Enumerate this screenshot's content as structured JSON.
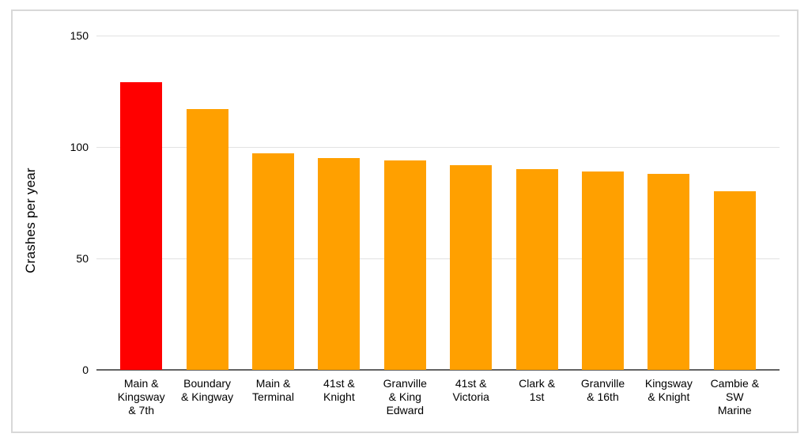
{
  "chart_data": {
    "type": "bar",
    "ylabel": "Crashes per year",
    "xlabel": "",
    "categories": [
      "Main &\nKingsway\n& 7th",
      "Boundary\n& Kingway",
      "Main &\nTerminal",
      "41st &\nKnight",
      "Granville\n& King\nEdward",
      "41st &\nVictoria",
      "Clark &\n1st",
      "Granville\n& 16th",
      "Kingsway\n& Knight",
      "Cambie &\nSW\nMarine"
    ],
    "values": [
      129,
      117,
      97,
      95,
      94,
      92,
      90,
      89,
      88,
      80
    ],
    "bar_colors": [
      "#ff0000",
      "#ffa000",
      "#ffa000",
      "#ffa000",
      "#ffa000",
      "#ffa000",
      "#ffa000",
      "#ffa000",
      "#ffa000",
      "#ffa000"
    ],
    "highlighted_category": "Main & Kingsway & 7th",
    "ylim": [
      0,
      150
    ],
    "yticks": [
      0,
      50,
      100,
      150
    ],
    "grid": "horizontal",
    "legend": "none",
    "colors": {
      "highlight": "#ff0000",
      "default_bar": "#ffa000",
      "gridline": "#e2e2e2",
      "axis_line": "#636363",
      "frame_border": "#d8d8d8",
      "text": "#000000"
    }
  }
}
